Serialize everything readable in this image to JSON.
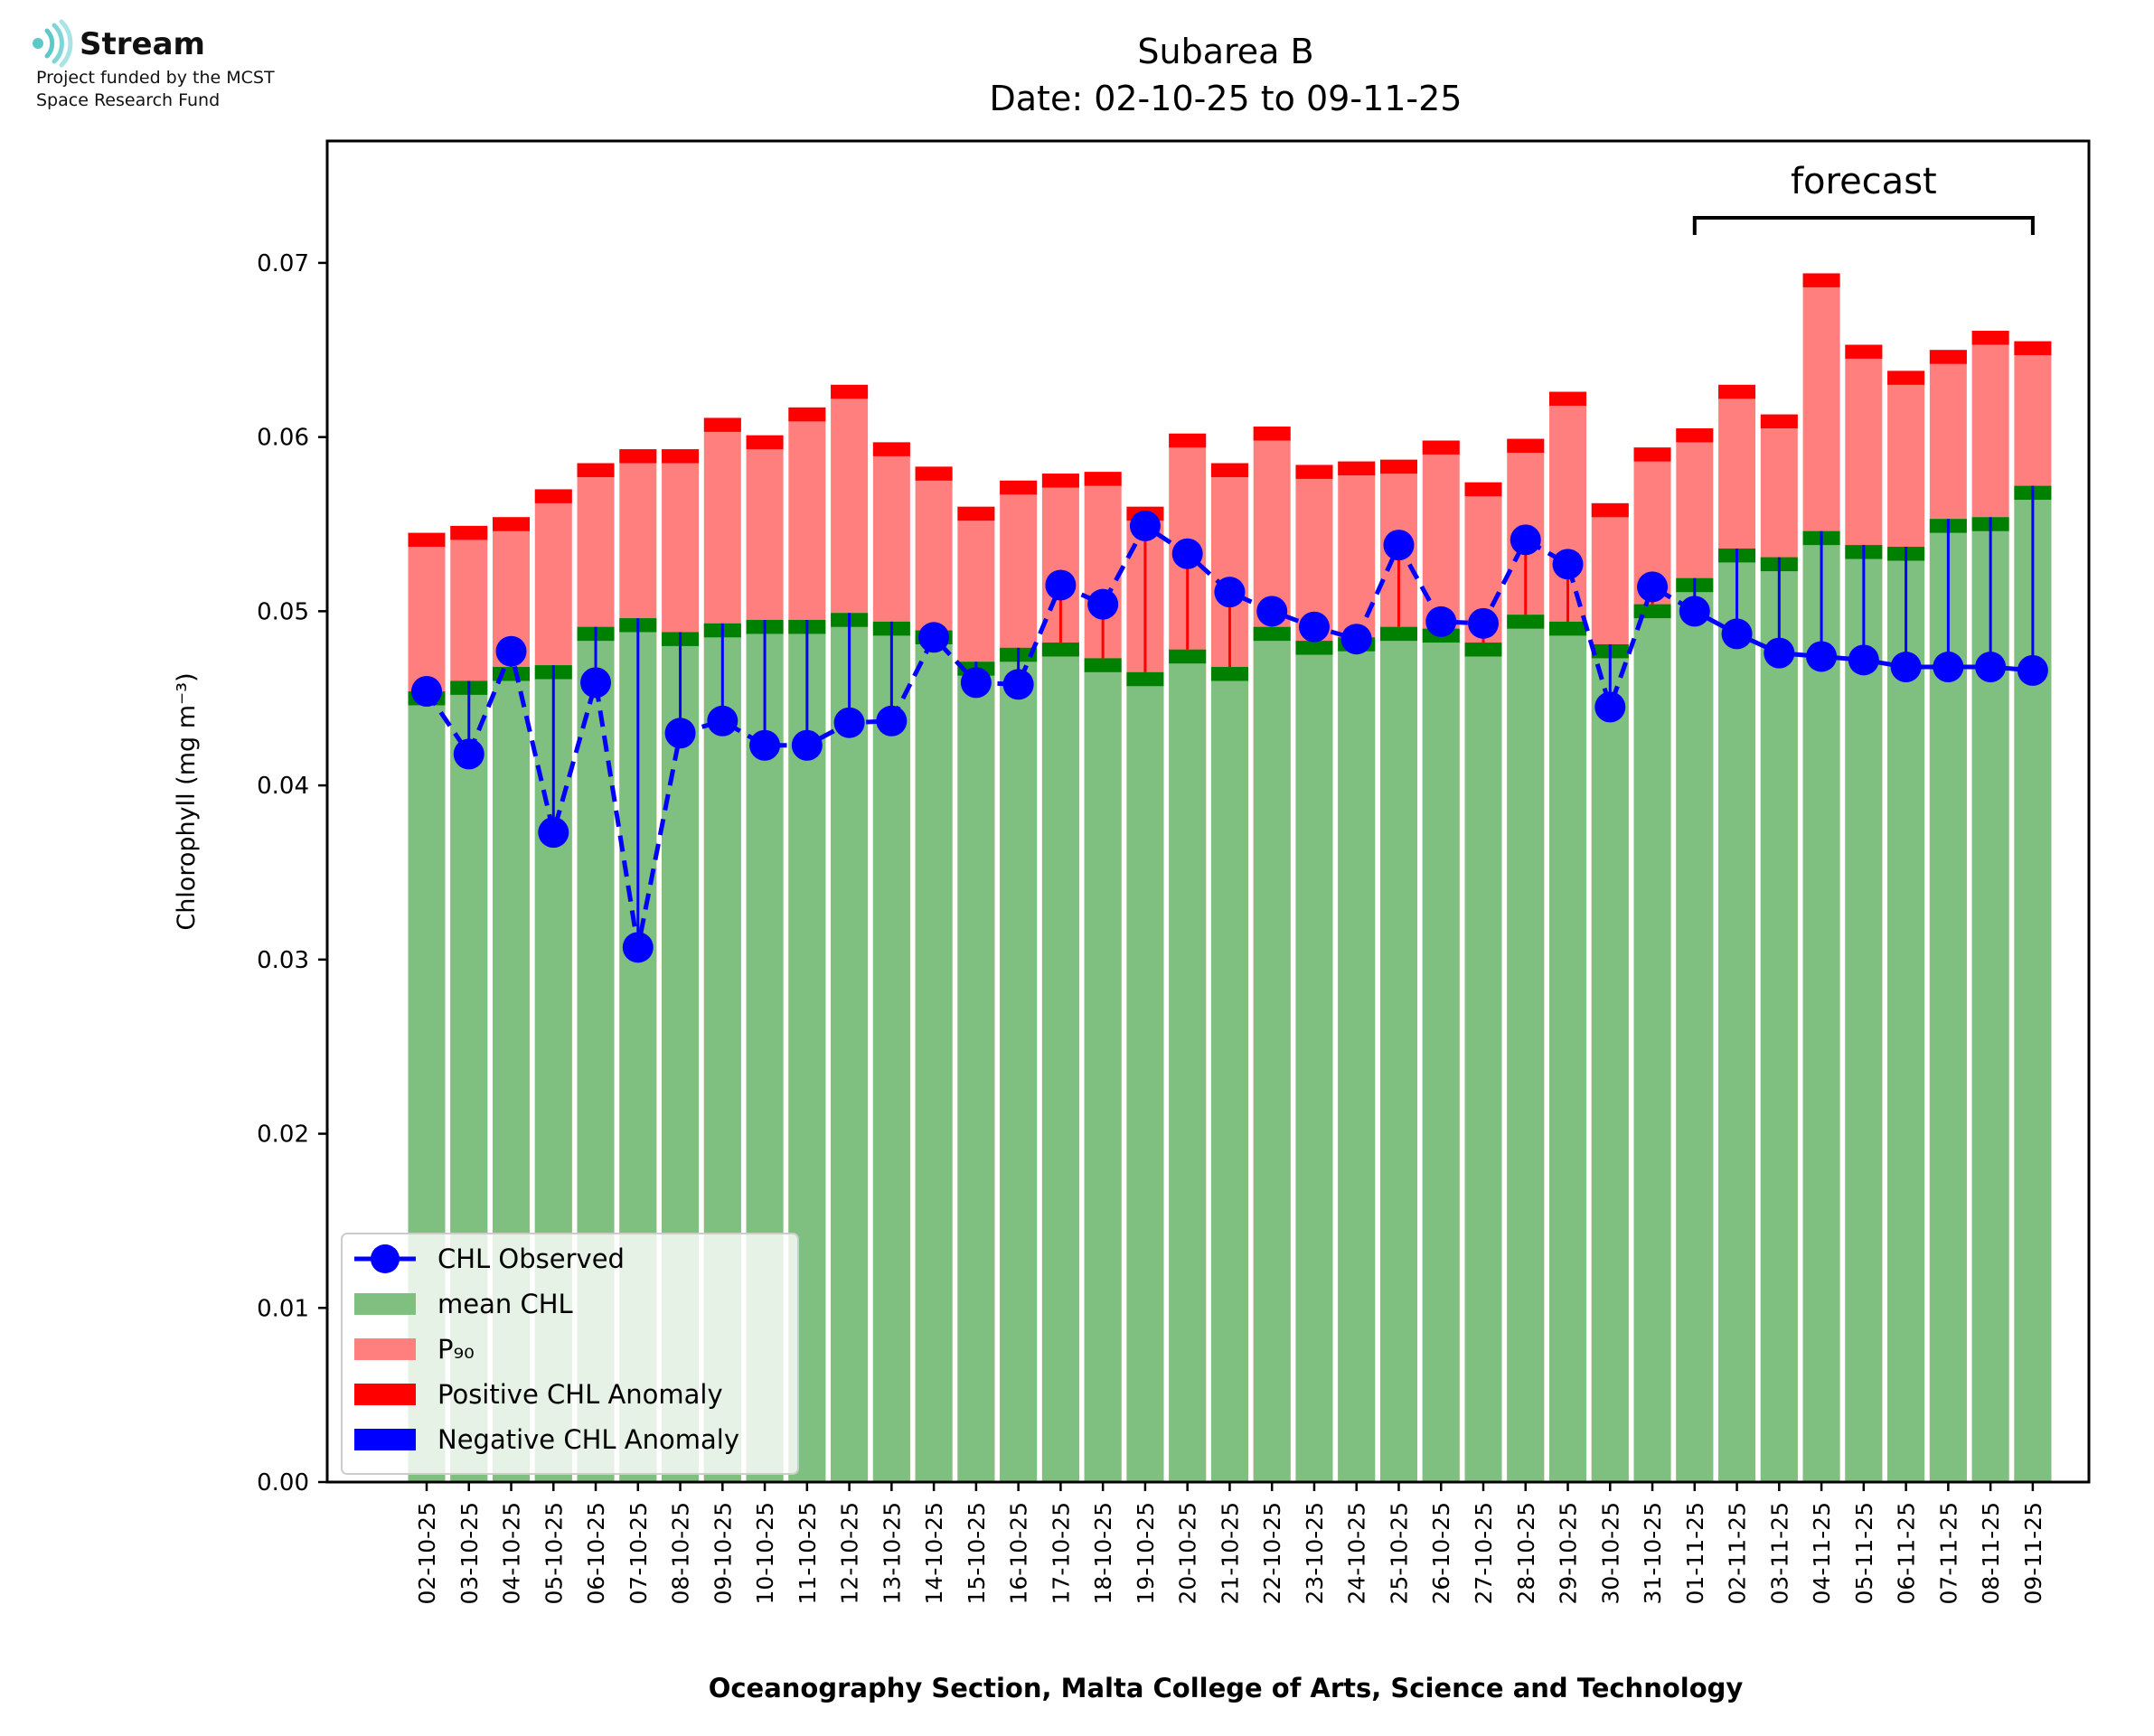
{
  "logo": {
    "name": "Stream",
    "line1": "Project funded by the MCST",
    "line2": "Space Research Fund",
    "color": "#5ec8c8"
  },
  "chart_data": {
    "type": "bar",
    "title": "Subarea B",
    "subtitle": "Date: 02-10-25 to 09-11-25",
    "xlabel": "Oceanography Section, Malta College of Arts, Science and Technology",
    "ylabel": "Chlorophyll (mg m⁻³)",
    "ylim": [
      0,
      0.077
    ],
    "yticks": [
      "0.00",
      "0.01",
      "0.02",
      "0.03",
      "0.04",
      "0.05",
      "0.06",
      "0.07"
    ],
    "forecast_label": "forecast",
    "forecast_range": [
      "01-11-25",
      "09-11-25"
    ],
    "categories": [
      "02-10-25",
      "03-10-25",
      "04-10-25",
      "05-10-25",
      "06-10-25",
      "07-10-25",
      "08-10-25",
      "09-10-25",
      "10-10-25",
      "11-10-25",
      "12-10-25",
      "13-10-25",
      "14-10-25",
      "15-10-25",
      "16-10-25",
      "17-10-25",
      "18-10-25",
      "19-10-25",
      "20-10-25",
      "21-10-25",
      "22-10-25",
      "23-10-25",
      "24-10-25",
      "25-10-25",
      "26-10-25",
      "27-10-25",
      "28-10-25",
      "29-10-25",
      "30-10-25",
      "31-10-25",
      "01-11-25",
      "02-11-25",
      "03-11-25",
      "04-11-25",
      "05-11-25",
      "06-11-25",
      "07-11-25",
      "08-11-25",
      "09-11-25"
    ],
    "series": [
      {
        "name": "mean CHL",
        "color": "#7fbf7f",
        "edge_color": "#008000",
        "values": [
          0.0454,
          0.046,
          0.0468,
          0.0469,
          0.0491,
          0.0496,
          0.0488,
          0.0493,
          0.0495,
          0.0495,
          0.0499,
          0.0494,
          0.0489,
          0.0471,
          0.0479,
          0.0482,
          0.0473,
          0.0465,
          0.0478,
          0.0468,
          0.0491,
          0.0483,
          0.0485,
          0.0491,
          0.049,
          0.0482,
          0.0498,
          0.0494,
          0.0481,
          0.0504,
          0.0519,
          0.0536,
          0.0531,
          0.0546,
          0.0538,
          0.0537,
          0.0553,
          0.0554,
          0.0572
        ]
      },
      {
        "name": "P₉₀",
        "color": "#ff7f7f",
        "edge_color": "#ff0000",
        "values": [
          0.0545,
          0.0549,
          0.0554,
          0.057,
          0.0585,
          0.0593,
          0.0593,
          0.0611,
          0.0601,
          0.0617,
          0.063,
          0.0597,
          0.0583,
          0.056,
          0.0575,
          0.0579,
          0.058,
          0.056,
          0.0602,
          0.0585,
          0.0606,
          0.0584,
          0.0586,
          0.0587,
          0.0598,
          0.0574,
          0.0599,
          0.0626,
          0.0562,
          0.0594,
          0.0605,
          0.063,
          0.0613,
          0.0694,
          0.0653,
          0.0638,
          0.065,
          0.0661,
          0.0655
        ]
      },
      {
        "name": "CHL Observed",
        "color": "#0000ff",
        "values": [
          0.0454,
          0.0418,
          0.0477,
          0.0373,
          0.0459,
          0.0307,
          0.043,
          0.0437,
          0.0423,
          0.0423,
          0.0436,
          0.0437,
          0.0485,
          0.0459,
          0.0458,
          0.0515,
          0.0504,
          0.0549,
          0.0533,
          0.0511,
          0.05,
          0.0491,
          0.0484,
          0.0538,
          0.0494,
          0.0493,
          0.0541,
          0.0527,
          0.0445,
          0.0514,
          0.05,
          0.0487,
          0.0476,
          0.0474,
          0.0472,
          0.0468,
          0.0468,
          0.0468,
          0.0466
        ]
      }
    ],
    "legend": {
      "position": "lower-left",
      "entries": [
        {
          "label": "CHL Observed",
          "color": "#0000ff",
          "kind": "line-marker"
        },
        {
          "label": "mean CHL",
          "color": "#7fbf7f",
          "kind": "patch"
        },
        {
          "label": "P₉₀",
          "color": "#ff7f7f",
          "kind": "patch"
        },
        {
          "label": "Positive CHL Anomaly",
          "color": "#ff0000",
          "kind": "patch"
        },
        {
          "label": "Negative CHL Anomaly",
          "color": "#0000ff",
          "kind": "patch"
        }
      ]
    }
  }
}
